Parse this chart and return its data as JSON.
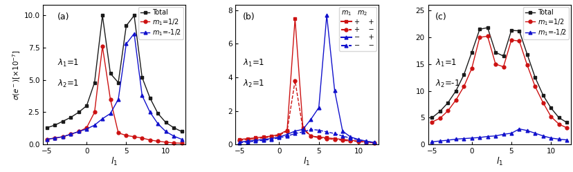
{
  "panel_a": {
    "label": "(a)",
    "ylim": [
      0,
      10.8
    ],
    "yticks": [
      0.0,
      2.5,
      5.0,
      7.5,
      10.0
    ],
    "x": [
      -5,
      -4,
      -3,
      -2,
      -1,
      0,
      1,
      2,
      3,
      4,
      5,
      6,
      7,
      8,
      9,
      10,
      11,
      12
    ],
    "total": [
      1.3,
      1.5,
      1.8,
      2.1,
      2.5,
      3.0,
      4.8,
      10.0,
      5.5,
      4.8,
      9.2,
      10.0,
      5.2,
      3.6,
      2.4,
      1.7,
      1.3,
      1.0
    ],
    "m1_pos": [
      0.4,
      0.5,
      0.6,
      0.8,
      1.0,
      1.3,
      2.5,
      7.6,
      3.5,
      0.9,
      0.7,
      0.6,
      0.5,
      0.35,
      0.25,
      0.18,
      0.12,
      0.1
    ],
    "m1_neg": [
      0.4,
      0.5,
      0.6,
      0.8,
      1.0,
      1.2,
      1.5,
      2.0,
      2.4,
      3.5,
      7.8,
      8.6,
      3.8,
      2.5,
      1.6,
      1.0,
      0.65,
      0.4
    ]
  },
  "panel_b": {
    "label": "(b)",
    "ylim": [
      0,
      8.3
    ],
    "yticks": [
      0,
      2,
      4,
      6,
      8
    ],
    "x": [
      -5,
      -4,
      -3,
      -2,
      -1,
      0,
      1,
      2,
      3,
      4,
      5,
      6,
      7,
      8,
      9,
      10,
      11,
      12
    ],
    "pp": [
      0.3,
      0.35,
      0.4,
      0.45,
      0.5,
      0.6,
      0.85,
      7.5,
      1.0,
      0.5,
      0.45,
      0.4,
      0.35,
      0.3,
      0.25,
      0.2,
      0.15,
      0.1
    ],
    "pm": [
      0.25,
      0.3,
      0.35,
      0.4,
      0.45,
      0.55,
      0.8,
      3.8,
      0.9,
      0.5,
      0.4,
      0.35,
      0.3,
      0.25,
      0.2,
      0.18,
      0.12,
      0.1
    ],
    "mp": [
      0.15,
      0.2,
      0.25,
      0.3,
      0.35,
      0.45,
      0.6,
      0.8,
      0.9,
      1.5,
      2.2,
      7.7,
      3.2,
      0.8,
      0.45,
      0.3,
      0.2,
      0.12
    ],
    "mm": [
      0.1,
      0.15,
      0.2,
      0.25,
      0.3,
      0.4,
      0.5,
      0.65,
      0.75,
      0.9,
      0.85,
      0.75,
      0.65,
      0.5,
      0.38,
      0.28,
      0.18,
      0.12
    ]
  },
  "panel_c": {
    "label": "(c)",
    "ylim": [
      0,
      26
    ],
    "yticks": [
      0,
      5,
      10,
      15,
      20,
      25
    ],
    "x": [
      -5,
      -4,
      -3,
      -2,
      -1,
      0,
      1,
      2,
      3,
      4,
      5,
      6,
      7,
      8,
      9,
      10,
      11,
      12
    ],
    "total": [
      5.0,
      6.2,
      7.8,
      10.0,
      13.0,
      17.2,
      21.5,
      21.8,
      17.2,
      16.5,
      21.3,
      21.2,
      16.8,
      12.5,
      9.2,
      6.8,
      5.0,
      4.1
    ],
    "m1_pos": [
      4.2,
      4.9,
      6.3,
      8.3,
      10.8,
      14.2,
      20.0,
      20.2,
      15.0,
      14.5,
      19.5,
      19.3,
      14.8,
      10.8,
      7.8,
      5.2,
      3.8,
      3.1
    ],
    "m1_neg": [
      0.5,
      0.65,
      0.8,
      1.0,
      1.1,
      1.2,
      1.3,
      1.5,
      1.6,
      1.9,
      2.1,
      2.9,
      2.6,
      2.1,
      1.6,
      1.2,
      1.0,
      0.85
    ]
  },
  "colors": {
    "black": "#1a1a1a",
    "red": "#cc1111",
    "blue": "#1111cc",
    "gray": "#555555"
  }
}
